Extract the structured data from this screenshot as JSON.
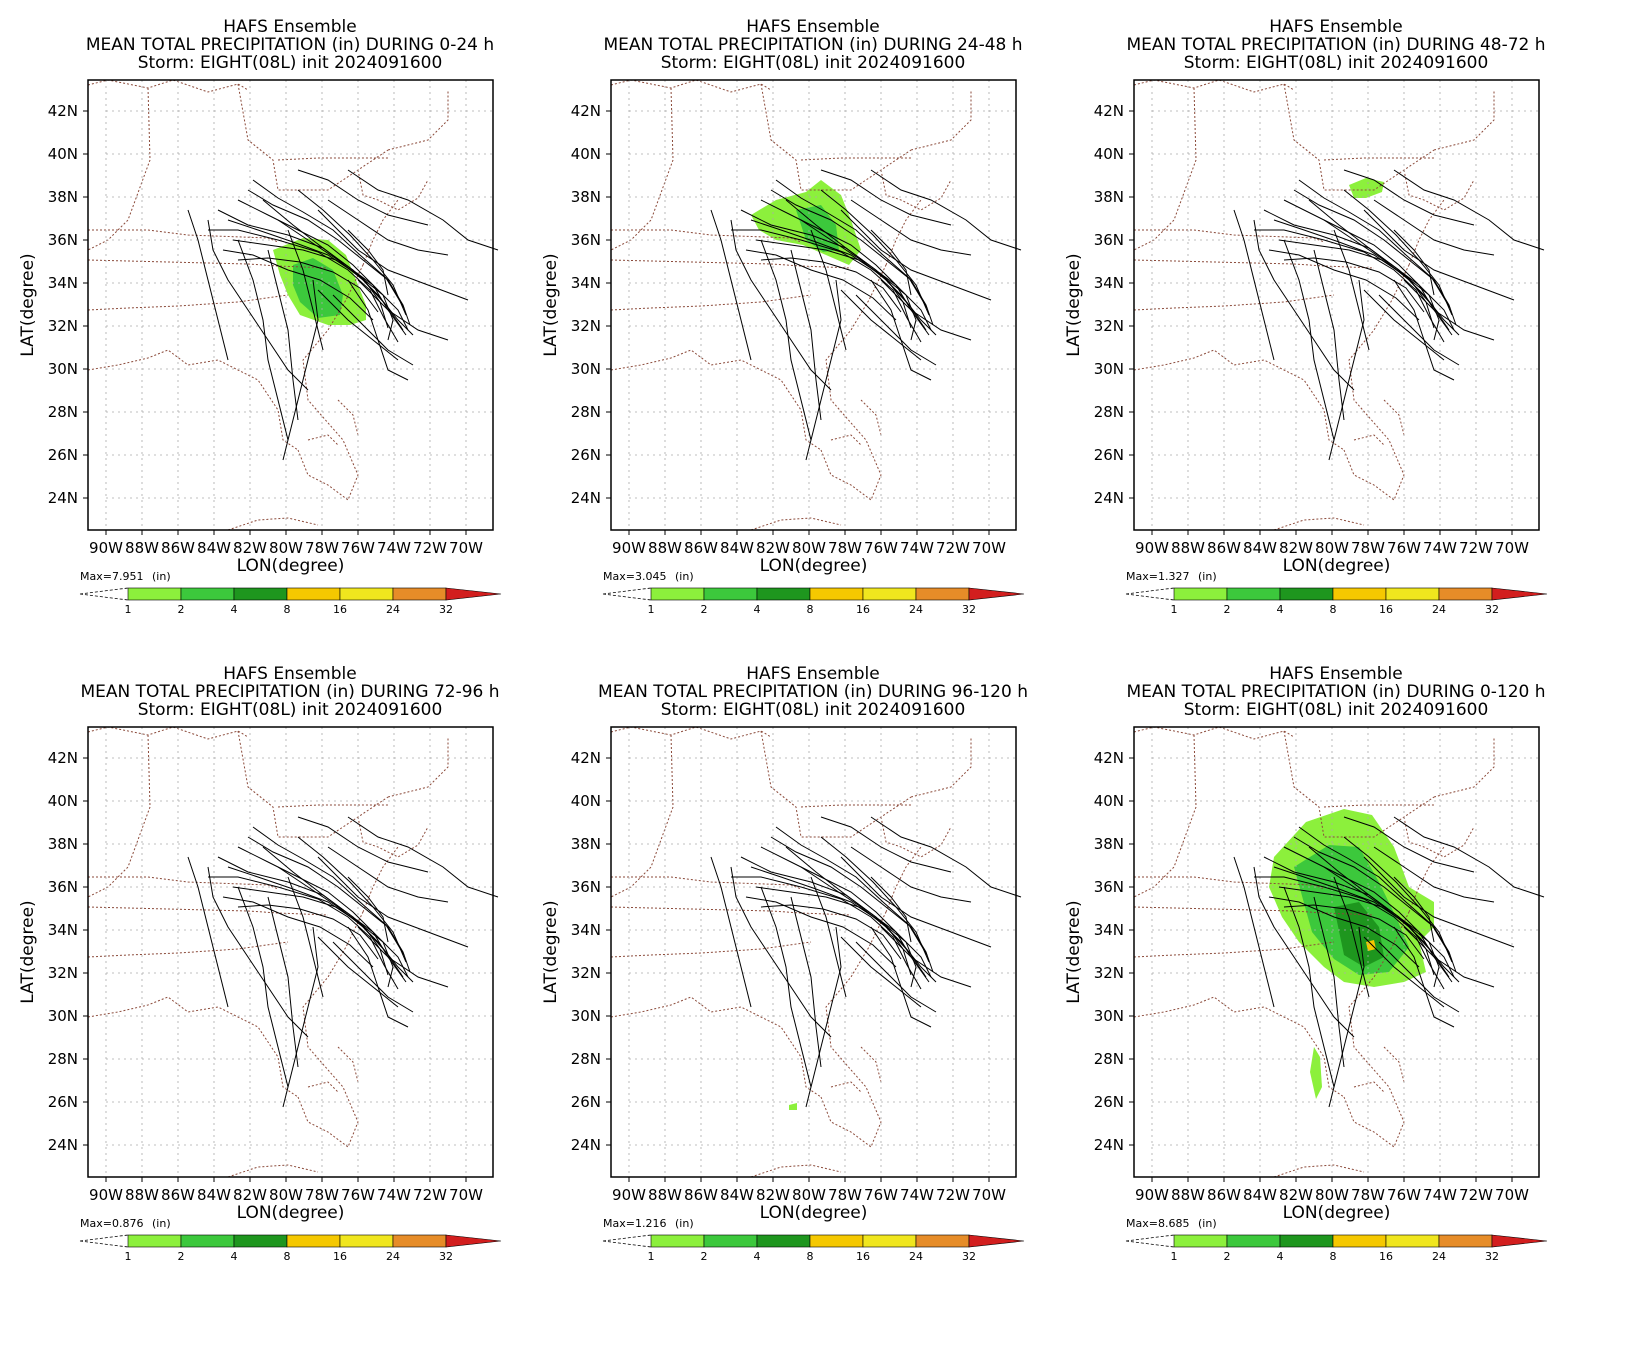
{
  "common": {
    "title_line1": "HAFS Ensemble",
    "title_prefix": "MEAN TOTAL PRECIPITATION (in) DURING ",
    "title_line3": "Storm: EIGHT(08L) init 2024091600",
    "xlabel": "LON(degree)",
    "ylabel": "LAT(degree)",
    "lon_ticks": [
      "90W",
      "88W",
      "86W",
      "84W",
      "82W",
      "80W",
      "78W",
      "76W",
      "74W",
      "72W",
      "70W"
    ],
    "lat_ticks": [
      "42N",
      "40N",
      "38N",
      "36N",
      "34N",
      "32N",
      "30N",
      "28N",
      "26N",
      "24N"
    ],
    "units": "(in)",
    "colorbar_levels": [
      "1",
      "2",
      "4",
      "8",
      "16",
      "24",
      "32"
    ],
    "colorbar_colors": [
      "#8cf03c",
      "#3cc83c",
      "#1e961e",
      "#f5c800",
      "#f0e61e",
      "#e68c28",
      "#d21e1e"
    ]
  },
  "panels": [
    {
      "period": "0-24 h",
      "max": "Max=7.951"
    },
    {
      "period": "24-48 h",
      "max": "Max=3.045"
    },
    {
      "period": "48-72 h",
      "max": "Max=1.327"
    },
    {
      "period": "72-96 h",
      "max": "Max=0.876"
    },
    {
      "period": "96-120 h",
      "max": "Max=1.216"
    },
    {
      "period": "0-120 h",
      "max": "Max=8.685"
    }
  ]
}
